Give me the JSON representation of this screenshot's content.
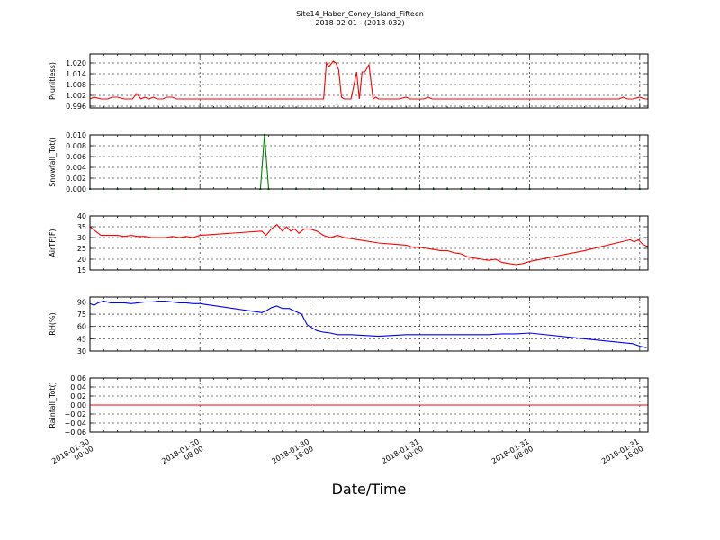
{
  "title": "Site14_Haber_Coney_Island_Fifteen",
  "subtitle": "2018-02-01 - (2018-032)",
  "xlabel": "Date/Time",
  "chart_data": {
    "type": "line",
    "grid": true,
    "x_range": [
      "2018-01-30 00:00",
      "2018-01-31 20:30"
    ],
    "x_ticks": [
      {
        "t": 0,
        "label": [
          "2018-01-30",
          "00:00"
        ]
      },
      {
        "t": 8,
        "label": [
          "2018-01-30",
          "08:00"
        ]
      },
      {
        "t": 16,
        "label": [
          "2018-01-30",
          "16:00"
        ]
      },
      {
        "t": 24,
        "label": [
          "2018-01-31",
          "00:00"
        ]
      },
      {
        "t": 32,
        "label": [
          "2018-01-31",
          "08:00"
        ]
      },
      {
        "t": 40,
        "label": [
          "2018-01-31",
          "16:00"
        ]
      }
    ],
    "panels": [
      {
        "ylabel": "P(unitless)",
        "color": "#ff0000",
        "ylim": [
          0.995,
          1.025
        ],
        "yticks": [
          0.996,
          1.002,
          1.008,
          1.014,
          1.02
        ],
        "ytick_labels": [
          "0.996",
          "1.002",
          "1.008",
          "1.014",
          "1.020"
        ],
        "x": [
          0,
          0.3,
          0.8,
          1.3,
          1.6,
          2.0,
          2.5,
          2.8,
          3.1,
          3.4,
          3.7,
          4.0,
          4.3,
          4.6,
          4.9,
          5.3,
          5.6,
          6.0,
          6.3,
          7.0,
          9.0,
          12.0,
          15.0,
          17.0,
          17.2,
          17.4,
          17.7,
          17.9,
          18.1,
          18.3,
          18.5,
          18.7,
          19.0,
          19.4,
          19.6,
          19.8,
          20.0,
          20.3,
          20.6,
          20.8,
          21.0,
          21.3,
          21.6,
          22.0,
          22.5,
          23.0,
          23.3,
          23.6,
          24.0,
          24.3,
          24.6,
          24.9,
          25.2,
          25.5,
          26.0,
          30.0,
          35.0,
          38.5,
          38.8,
          39.1,
          39.5,
          40.0,
          40.4,
          40.6
        ],
        "y": [
          1.0,
          1.001,
          1.0,
          1.0,
          1.001,
          1.001,
          1.0,
          1.0,
          1.0,
          1.003,
          1.0,
          1.001,
          1.0,
          1.001,
          1.0,
          1.0,
          1.001,
          1.001,
          1.0,
          1.0,
          1.0,
          1.0,
          1.0,
          1.0,
          1.02,
          1.018,
          1.021,
          1.02,
          1.016,
          1.001,
          1.0,
          1.0,
          1.0,
          1.015,
          1.0,
          1.015,
          1.015,
          1.019,
          1.0,
          1.001,
          1.0,
          1.0,
          1.0,
          1.0,
          1.0,
          1.001,
          1.0,
          1.0,
          1.0,
          1.0,
          1.001,
          1.0,
          1.0,
          1.0,
          1.0,
          1.0,
          1.0,
          1.0,
          1.001,
          1.0,
          1.0,
          1.001,
          1.0,
          1.0
        ]
      },
      {
        "ylabel": "Snowfall_Tot()",
        "color": "#007f00",
        "ylim": [
          0.0,
          0.01
        ],
        "yticks": [
          0.0,
          0.002,
          0.004,
          0.006,
          0.008,
          0.01
        ],
        "ytick_labels": [
          "0.000",
          "0.002",
          "0.004",
          "0.006",
          "0.008",
          "0.010"
        ],
        "x": [
          0,
          7.9,
          12.4,
          12.7,
          13.0,
          32.0,
          38.9,
          40.6
        ],
        "y": [
          0.0,
          0.0,
          0.0,
          0.01,
          0.0,
          0.0,
          0.0,
          0.0
        ],
        "markers_x": [
          0,
          1,
          2,
          3,
          4,
          5,
          6,
          7,
          12.4,
          12.7,
          13,
          14,
          15,
          16,
          17,
          18,
          19,
          20,
          21,
          22,
          23,
          24,
          25,
          26,
          27,
          28,
          29,
          30,
          31,
          32,
          39,
          40
        ],
        "markers_y": [
          0,
          0,
          0,
          0,
          0,
          0,
          0,
          0,
          0,
          0.01,
          0,
          0,
          0,
          0,
          0,
          0,
          0,
          0,
          0,
          0,
          0,
          0,
          0,
          0,
          0,
          0,
          0,
          0,
          0,
          0,
          0,
          0
        ]
      },
      {
        "ylabel": "AirTF(F)",
        "color": "#ff0000",
        "ylim": [
          15,
          40
        ],
        "yticks": [
          15,
          20,
          25,
          30,
          35,
          40
        ],
        "ytick_labels": [
          "15",
          "20",
          "25",
          "30",
          "35",
          "40"
        ],
        "x": [
          0,
          0.4,
          0.8,
          1.5,
          2.0,
          2.5,
          3.0,
          3.5,
          4.0,
          4.5,
          5.0,
          5.5,
          6.0,
          6.5,
          7.0,
          7.5,
          8.0,
          12.5,
          12.8,
          13.2,
          13.6,
          14.0,
          14.3,
          14.6,
          14.9,
          15.2,
          15.6,
          16.0,
          16.5,
          17.0,
          17.5,
          18.0,
          18.5,
          19.0,
          20.0,
          21.0,
          22.0,
          23.0,
          23.5,
          24.0,
          24.5,
          25.0,
          25.5,
          26.0,
          26.5,
          27.0,
          27.5,
          28.0,
          28.5,
          29.0,
          29.5,
          30.0,
          30.5,
          31.0,
          31.5,
          32.0,
          36.0,
          39.3,
          39.6,
          39.9,
          40.2,
          40.5,
          40.6
        ],
        "y": [
          35,
          33,
          31,
          31,
          31,
          30.5,
          31,
          30.5,
          30.5,
          30,
          30,
          30,
          30.5,
          30,
          30.5,
          30,
          31,
          33,
          31,
          34,
          36,
          33,
          35,
          33,
          34,
          32,
          34,
          34,
          33,
          31,
          30,
          31,
          30,
          29.5,
          28.5,
          27.5,
          27,
          26.5,
          25.5,
          25.5,
          25,
          24.5,
          24,
          24,
          23,
          22.5,
          21,
          20.5,
          20,
          19.5,
          20,
          18.5,
          18,
          17.5,
          18,
          19,
          24,
          29,
          28,
          29,
          27,
          26,
          26
        ]
      },
      {
        "ylabel": "RH(%)",
        "color": "#0000ff",
        "ylim": [
          30,
          96
        ],
        "yticks": [
          30,
          45,
          60,
          75,
          90
        ],
        "ytick_labels": [
          "30",
          "45",
          "60",
          "75",
          "90"
        ],
        "x": [
          0,
          0.3,
          0.6,
          1.0,
          1.5,
          2.0,
          2.5,
          3.0,
          3.5,
          4.0,
          4.5,
          5.0,
          5.5,
          6.0,
          6.5,
          7.0,
          7.5,
          8.0,
          12.5,
          12.8,
          13.2,
          13.6,
          14.0,
          14.5,
          15.0,
          15.4,
          15.8,
          16.0,
          16.5,
          17.0,
          17.5,
          18.0,
          19.0,
          20.0,
          21.0,
          22.0,
          23.0,
          24.0,
          25.0,
          26.0,
          27.0,
          28.0,
          29.0,
          30.0,
          31.0,
          32.0,
          36.0,
          39.5,
          40.0,
          40.5
        ],
        "y": [
          88,
          86,
          89,
          91,
          89,
          89,
          89,
          88,
          89,
          90,
          90,
          91,
          91,
          90,
          89,
          89,
          88,
          88,
          77,
          79,
          83,
          85,
          82,
          82,
          78,
          75,
          62,
          60,
          55,
          53,
          52,
          50,
          50,
          49,
          48,
          49,
          50,
          50,
          50,
          50,
          50,
          50,
          50,
          51,
          51,
          52,
          45,
          39,
          36,
          34
        ]
      },
      {
        "ylabel": "Rainfall_Tot()",
        "color": "#ff0000",
        "ylim": [
          -0.06,
          0.06
        ],
        "yticks": [
          -0.06,
          -0.04,
          -0.02,
          0.0,
          0.02,
          0.04,
          0.06
        ],
        "ytick_labels": [
          "−0.06",
          "−0.04",
          "−0.02",
          "0.00",
          "0.02",
          "0.04",
          "0.06"
        ],
        "x": [
          0,
          40.6
        ],
        "y": [
          0.0,
          0.0
        ]
      }
    ]
  }
}
